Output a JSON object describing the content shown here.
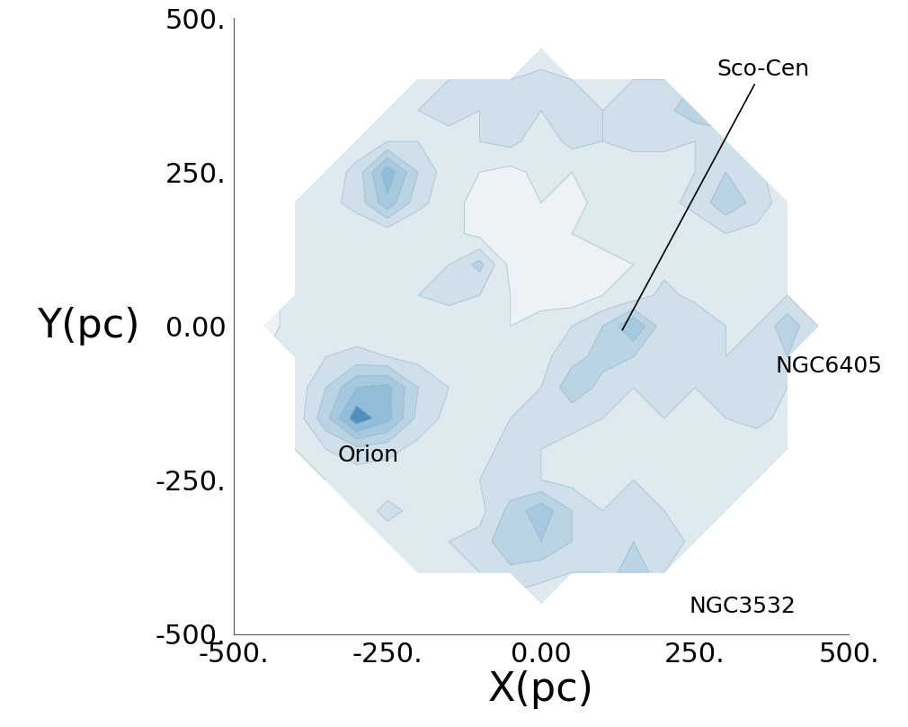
{
  "chart_data": {
    "type": "contour",
    "x_label": "X(pc)",
    "y_label": "Y(pc)",
    "xlim": [
      -500,
      500
    ],
    "ylim": [
      -500,
      500
    ],
    "xticks": [
      {
        "value": -500,
        "label": "-500."
      },
      {
        "value": -250,
        "label": "-250."
      },
      {
        "value": 0,
        "label": "0.00"
      },
      {
        "value": 250,
        "label": "250."
      },
      {
        "value": 500,
        "label": "500."
      }
    ],
    "yticks": [
      {
        "value": -500,
        "label": "-500."
      },
      {
        "value": -250,
        "label": "-250."
      },
      {
        "value": 0,
        "label": "0.00"
      },
      {
        "value": 250,
        "label": "250."
      },
      {
        "value": 500,
        "label": "500."
      }
    ],
    "x": [
      -450,
      -400,
      -350,
      -300,
      -250,
      -200,
      -150,
      -100,
      -50,
      0,
      50,
      100,
      150,
      200,
      250,
      300,
      350,
      400,
      450
    ],
    "y": [
      450,
      400,
      350,
      300,
      250,
      200,
      150,
      100,
      50,
      0,
      -50,
      -100,
      -150,
      -200,
      -250,
      -300,
      -350,
      -400,
      -450
    ],
    "levels": [
      0.15,
      0.3,
      0.45,
      0.6,
      0.75,
      0.9
    ],
    "cells": [
      [
        null,
        null,
        null,
        null,
        null,
        null,
        null,
        null,
        null,
        0.2,
        null,
        null,
        null,
        null,
        null,
        null,
        null,
        null,
        null
      ],
      [
        null,
        null,
        null,
        null,
        null,
        0.2,
        0.3,
        0.35,
        0.3,
        0.35,
        0.3,
        0.3,
        0.3,
        0.3,
        null,
        null,
        null,
        null,
        null
      ],
      [
        null,
        null,
        null,
        null,
        0.2,
        0.3,
        0.35,
        0.3,
        0.4,
        0.3,
        0.35,
        0.3,
        0.4,
        0.4,
        0.55,
        null,
        null,
        null,
        null
      ],
      [
        null,
        null,
        null,
        0.2,
        0.3,
        0.3,
        0.25,
        0.3,
        0.35,
        0.2,
        0.35,
        0.3,
        0.35,
        0.35,
        0.3,
        0.35,
        null,
        null,
        null
      ],
      [
        null,
        null,
        0.2,
        0.35,
        0.85,
        0.45,
        0.2,
        0.15,
        0.1,
        0.2,
        0.15,
        0.3,
        0.2,
        0.2,
        0.3,
        0.45,
        0.35,
        null,
        null
      ],
      [
        null,
        0.15,
        0.25,
        0.35,
        0.7,
        0.35,
        0.2,
        0.1,
        0.05,
        0.15,
        0.1,
        0.2,
        0.3,
        0.25,
        0.35,
        0.55,
        0.4,
        0.2,
        null
      ],
      [
        null,
        0.2,
        0.3,
        0.2,
        0.2,
        0.15,
        0.2,
        0.1,
        0.0,
        0.1,
        0.15,
        0.2,
        0.25,
        0.3,
        0.2,
        0.3,
        0.25,
        0.2,
        null
      ],
      [
        null,
        0.15,
        0.3,
        0.25,
        0.3,
        0.2,
        0.3,
        0.5,
        0.1,
        0.05,
        0.0,
        0.1,
        0.15,
        0.25,
        0.3,
        0.25,
        0.3,
        0.2,
        null
      ],
      [
        null,
        0.2,
        0.25,
        0.3,
        0.2,
        0.3,
        0.35,
        0.3,
        0.15,
        0.1,
        0.05,
        0.15,
        0.2,
        0.35,
        0.25,
        0.3,
        0.25,
        0.3,
        null
      ],
      [
        0.1,
        0.2,
        0.25,
        0.2,
        0.3,
        0.25,
        0.2,
        0.25,
        0.15,
        0.2,
        0.3,
        0.45,
        0.75,
        0.35,
        0.45,
        0.3,
        0.3,
        0.55,
        0.3
      ],
      [
        null,
        0.25,
        0.3,
        0.35,
        0.3,
        0.25,
        0.3,
        0.2,
        0.2,
        0.25,
        0.4,
        0.5,
        0.45,
        0.3,
        0.35,
        0.3,
        0.4,
        0.45,
        null
      ],
      [
        null,
        0.2,
        0.45,
        0.75,
        0.8,
        0.45,
        0.3,
        0.25,
        0.2,
        0.3,
        0.55,
        0.4,
        0.3,
        0.35,
        0.3,
        0.35,
        0.35,
        0.3,
        null
      ],
      [
        null,
        0.2,
        0.55,
        1.0,
        0.8,
        0.4,
        0.25,
        0.2,
        0.3,
        0.45,
        0.35,
        0.3,
        0.25,
        0.3,
        0.25,
        0.3,
        0.35,
        0.25,
        null
      ],
      [
        null,
        0.15,
        0.3,
        0.4,
        0.35,
        0.25,
        0.2,
        0.25,
        0.35,
        0.3,
        0.25,
        0.2,
        0.3,
        0.25,
        0.2,
        0.25,
        0.2,
        0.15,
        null
      ],
      [
        null,
        null,
        0.15,
        0.2,
        0.2,
        0.3,
        0.25,
        0.3,
        0.35,
        0.3,
        0.25,
        0.3,
        0.3,
        0.25,
        0.3,
        0.25,
        0.2,
        null,
        null
      ],
      [
        null,
        null,
        null,
        0.2,
        0.35,
        0.25,
        0.3,
        0.25,
        0.5,
        0.7,
        0.45,
        0.3,
        0.35,
        0.3,
        0.3,
        0.2,
        null,
        null,
        null
      ],
      [
        null,
        null,
        null,
        null,
        0.2,
        0.3,
        0.3,
        0.35,
        0.6,
        0.6,
        0.45,
        0.35,
        0.45,
        0.4,
        0.25,
        null,
        null,
        null,
        null
      ],
      [
        null,
        null,
        null,
        null,
        null,
        0.2,
        0.3,
        0.3,
        0.4,
        0.35,
        0.3,
        0.3,
        0.6,
        0.3,
        null,
        null,
        null,
        null,
        null
      ],
      [
        null,
        null,
        null,
        null,
        null,
        null,
        null,
        null,
        null,
        0.2,
        null,
        null,
        null,
        null,
        null,
        null,
        null,
        null,
        null
      ]
    ],
    "annotations": [
      {
        "text": "Orion",
        "x": -330,
        "y": -210
      },
      {
        "text": "Sco-Cen",
        "x": 285,
        "y": 400,
        "point": [
          130,
          -10
        ]
      },
      {
        "text": "NGC6405",
        "x": 380,
        "y": -65
      },
      {
        "text": "NGC3532",
        "x": 240,
        "y": -455
      }
    ]
  }
}
